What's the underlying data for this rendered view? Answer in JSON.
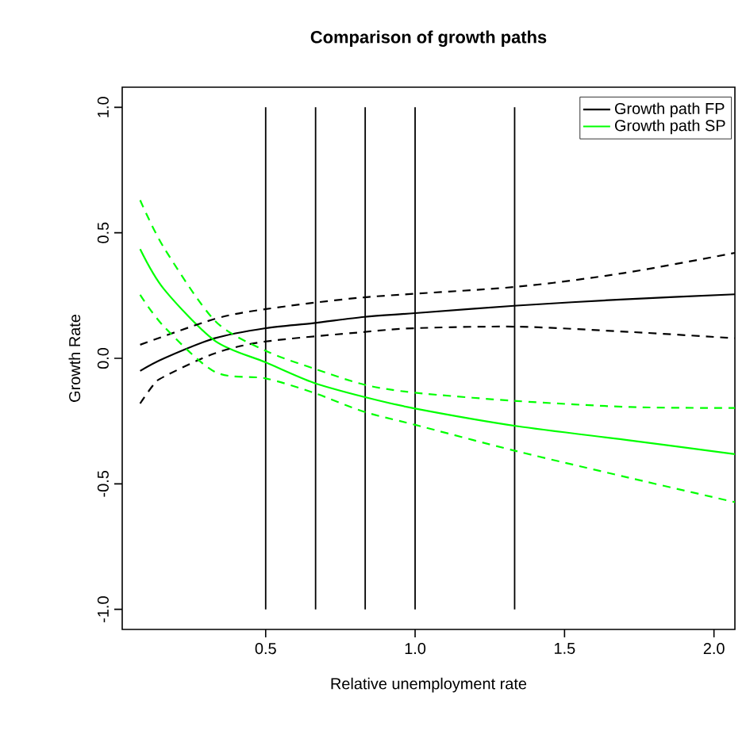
{
  "chart_data": {
    "type": "line",
    "title": "Comparison of growth paths",
    "xlabel": "Relative unemployment rate",
    "ylabel": "Growth Rate",
    "xlim": [
      0.02,
      2.07
    ],
    "ylim": [
      -1.08,
      1.08
    ],
    "xticks": [
      {
        "value": 0.5,
        "label": "0.5"
      },
      {
        "value": 1.0,
        "label": "1.0"
      },
      {
        "value": 1.5,
        "label": "1.5"
      },
      {
        "value": 2.0,
        "label": "2.0"
      }
    ],
    "yticks": [
      {
        "value": -1.0,
        "label": "-1.0"
      },
      {
        "value": -0.5,
        "label": "-0.5"
      },
      {
        "value": 0.0,
        "label": "0.0"
      },
      {
        "value": 0.5,
        "label": "0.5"
      },
      {
        "value": 1.0,
        "label": "1.0"
      }
    ],
    "legend": "top right",
    "grid": false,
    "ref_lines": [
      {
        "axis": "x",
        "value": 0.5,
        "color": "#000000"
      },
      {
        "axis": "x",
        "value": 0.667,
        "color": "#000000"
      },
      {
        "axis": "x",
        "value": 0.833,
        "color": "#000000"
      },
      {
        "axis": "x",
        "value": 1.0,
        "color": "#000000"
      },
      {
        "axis": "x",
        "value": 1.333,
        "color": "#000000"
      }
    ],
    "series": [
      {
        "name": "Growth path FP",
        "color": "#000000",
        "line_style": "solid",
        "x": [
          0.08,
          0.16,
          0.33,
          0.5,
          0.66,
          0.83,
          1.0,
          1.34,
          1.7,
          2.07
        ],
        "values": [
          -0.05,
          0.0,
          0.08,
          0.12,
          0.14,
          0.165,
          0.18,
          0.21,
          0.235,
          0.255
        ]
      },
      {
        "name": "Growth path SP",
        "color": "#00ff00",
        "line_style": "solid",
        "x": [
          0.08,
          0.16,
          0.33,
          0.5,
          0.66,
          0.83,
          1.0,
          1.34,
          1.72,
          2.07
        ],
        "values": [
          0.435,
          0.275,
          0.07,
          -0.016,
          -0.097,
          -0.154,
          -0.2,
          -0.27,
          -0.327,
          -0.382
        ]
      },
      {
        "color": "#000000",
        "line_style": "dashed",
        "x": [
          0.08,
          0.33,
          0.5,
          0.83,
          1.34,
          1.7,
          2.07
        ],
        "values": [
          0.054,
          0.157,
          0.196,
          0.243,
          0.285,
          0.34,
          0.42
        ]
      },
      {
        "color": "#000000",
        "line_style": "dashed",
        "x": [
          0.08,
          0.125,
          0.16,
          0.33,
          0.5,
          0.83,
          1.0,
          1.34,
          1.72,
          2.07
        ],
        "values": [
          -0.18,
          -0.105,
          -0.073,
          0.02,
          0.067,
          0.105,
          0.12,
          0.126,
          0.105,
          0.08
        ]
      },
      {
        "color": "#00ff00",
        "line_style": "dashed",
        "x": [
          0.08,
          0.16,
          0.33,
          0.5,
          0.66,
          0.83,
          1.0,
          1.34,
          1.72,
          2.07
        ],
        "values": [
          0.63,
          0.44,
          0.15,
          0.03,
          -0.04,
          -0.105,
          -0.137,
          -0.17,
          -0.194,
          -0.198
        ]
      },
      {
        "color": "#00ff00",
        "line_style": "dashed",
        "x": [
          0.08,
          0.16,
          0.33,
          0.5,
          0.66,
          0.83,
          1.0,
          1.34,
          1.72,
          2.07
        ],
        "values": [
          0.253,
          0.126,
          -0.054,
          -0.08,
          -0.137,
          -0.213,
          -0.265,
          -0.37,
          -0.477,
          -0.573
        ]
      }
    ]
  }
}
